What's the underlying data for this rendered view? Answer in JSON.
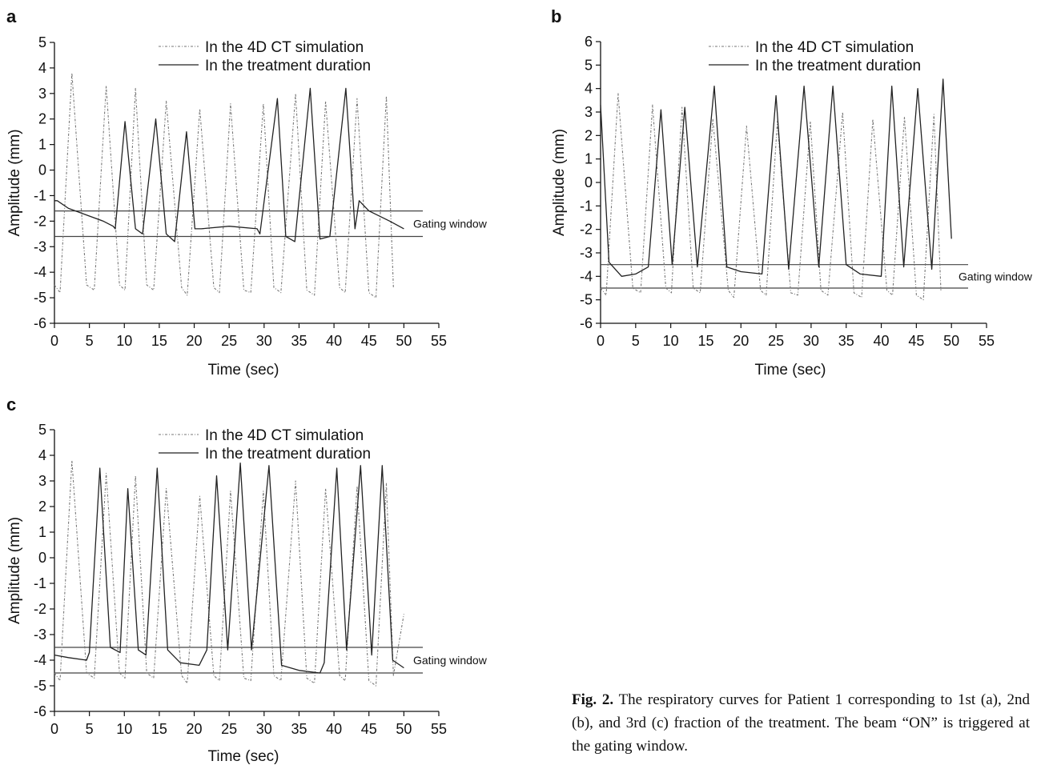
{
  "caption": {
    "label": "Fig. 2.",
    "text": "The respiratory curves for Patient 1 corresponding to 1st (a), 2nd (b), and 3rd (c) fraction of the treatment. The beam “ON” is triggered at the gating window."
  },
  "chart_data": [
    {
      "panel": "a",
      "type": "line",
      "xlabel": "Time (sec)",
      "ylabel": "Amplitude (mm)",
      "xlim": [
        0,
        55
      ],
      "ylim": [
        -6,
        5
      ],
      "xticks": [
        0,
        5,
        10,
        15,
        20,
        25,
        30,
        35,
        40,
        45,
        50,
        55
      ],
      "yticks": [
        -6,
        -5,
        -4,
        -3,
        -2,
        -1,
        0,
        1,
        2,
        3,
        4,
        5
      ],
      "legend_position": "top-right",
      "gating_window": {
        "label": "Gating window",
        "lower": -2.6,
        "upper": -1.6
      },
      "series": [
        {
          "name": "In the 4D CT simulation",
          "style": "dash-dot",
          "x": [
            0,
            0.8,
            2.5,
            4.6,
            5.7,
            7.4,
            9.3,
            10.1,
            11.6,
            13.2,
            14.2,
            16.0,
            18.2,
            19.0,
            20.8,
            22.8,
            23.6,
            25.2,
            27.1,
            28.1,
            29.9,
            31.4,
            32.4,
            34.5,
            36.1,
            37.2,
            38.8,
            40.8,
            41.6,
            43.3,
            45.0,
            46.0,
            47.5,
            48.5
          ],
          "values": [
            -4.5,
            -4.8,
            3.8,
            -4.5,
            -4.7,
            3.3,
            -4.5,
            -4.7,
            3.2,
            -4.5,
            -4.7,
            2.7,
            -4.6,
            -4.9,
            2.4,
            -4.6,
            -4.8,
            2.6,
            -4.7,
            -4.8,
            2.6,
            -4.6,
            -4.8,
            3.0,
            -4.7,
            -4.9,
            2.7,
            -4.6,
            -4.8,
            2.8,
            -4.8,
            -5.0,
            2.9,
            -4.6
          ]
        },
        {
          "name": "In the treatment duration",
          "style": "solid",
          "x": [
            0,
            0.4,
            2,
            5,
            7,
            8.4,
            8.7,
            10.1,
            11.6,
            12.6,
            14.5,
            16.0,
            17.2,
            18.9,
            20.1,
            21.0,
            25,
            29,
            29.4,
            31.9,
            33.1,
            34.4,
            36.6,
            38.0,
            39.4,
            41.7,
            43.0,
            43.6,
            45,
            48,
            50
          ],
          "values": [
            -1.2,
            -1.2,
            -1.5,
            -1.8,
            -2.0,
            -2.2,
            -2.3,
            1.9,
            -2.3,
            -2.5,
            2.0,
            -2.5,
            -2.8,
            1.5,
            -2.3,
            -2.3,
            -2.2,
            -2.3,
            -2.5,
            2.8,
            -2.6,
            -2.8,
            3.2,
            -2.7,
            -2.6,
            3.2,
            -2.3,
            -1.2,
            -1.6,
            -2.0,
            -2.3
          ]
        }
      ]
    },
    {
      "panel": "b",
      "type": "line",
      "xlabel": "Time (sec)",
      "ylabel": "Amplitude (mm)",
      "xlim": [
        0,
        55
      ],
      "ylim": [
        -6,
        6
      ],
      "xticks": [
        0,
        5,
        10,
        15,
        20,
        25,
        30,
        35,
        40,
        45,
        50,
        55
      ],
      "yticks": [
        -6,
        -5,
        -4,
        -3,
        -2,
        -1,
        0,
        1,
        2,
        3,
        4,
        5,
        6
      ],
      "legend_position": "top-right",
      "gating_window": {
        "label": "Gating window",
        "lower": -4.5,
        "upper": -3.5
      },
      "series": [
        {
          "name": "In the 4D CT simulation",
          "style": "dash-dot",
          "x": [
            0,
            0.8,
            2.5,
            4.6,
            5.7,
            7.4,
            9.3,
            10.1,
            11.6,
            13.2,
            14.2,
            16.0,
            18.2,
            19.0,
            20.8,
            22.8,
            23.6,
            25.2,
            27.1,
            28.1,
            29.9,
            31.4,
            32.4,
            34.5,
            36.1,
            37.2,
            38.8,
            40.8,
            41.6,
            43.3,
            45.0,
            46.0,
            47.5,
            48.5
          ],
          "values": [
            -4.5,
            -4.8,
            3.8,
            -4.5,
            -4.7,
            3.3,
            -4.5,
            -4.7,
            3.2,
            -4.5,
            -4.7,
            2.7,
            -4.6,
            -4.9,
            2.4,
            -4.6,
            -4.8,
            2.6,
            -4.7,
            -4.8,
            2.6,
            -4.6,
            -4.8,
            3.0,
            -4.7,
            -4.9,
            2.7,
            -4.6,
            -4.8,
            2.8,
            -4.8,
            -5.0,
            2.9,
            -4.6
          ]
        },
        {
          "name": "In the treatment duration",
          "style": "solid",
          "x": [
            0,
            1.2,
            3,
            5,
            6.8,
            8.6,
            10.2,
            12.0,
            13.8,
            16.2,
            18.0,
            20,
            23,
            25.0,
            26.8,
            29.0,
            31.1,
            33.1,
            35.0,
            37,
            40,
            41.5,
            43.2,
            45.2,
            47.2,
            48.8,
            50
          ],
          "values": [
            3.3,
            -3.4,
            -4.0,
            -3.9,
            -3.6,
            3.1,
            -3.5,
            3.2,
            -3.6,
            4.1,
            -3.6,
            -3.8,
            -3.9,
            3.7,
            -3.7,
            4.1,
            -3.6,
            4.1,
            -3.5,
            -3.9,
            -4.0,
            4.1,
            -3.6,
            4.0,
            -3.7,
            4.4,
            -2.4
          ]
        }
      ]
    },
    {
      "panel": "c",
      "type": "line",
      "xlabel": "Time (sec)",
      "ylabel": "Amplitude (mm)",
      "xlim": [
        0,
        55
      ],
      "ylim": [
        -6,
        5
      ],
      "xticks": [
        0,
        5,
        10,
        15,
        20,
        25,
        30,
        35,
        40,
        45,
        50,
        55
      ],
      "yticks": [
        -6,
        -5,
        -4,
        -3,
        -2,
        -1,
        0,
        1,
        2,
        3,
        4,
        5
      ],
      "legend_position": "top-right",
      "gating_window": {
        "label": "Gating window",
        "lower": -4.5,
        "upper": -3.5
      },
      "series": [
        {
          "name": "In the 4D CT simulation",
          "style": "dash-dot",
          "x": [
            0,
            0.8,
            2.5,
            4.6,
            5.7,
            7.4,
            9.3,
            10.1,
            11.6,
            13.2,
            14.2,
            16.0,
            18.2,
            19.0,
            20.8,
            22.8,
            23.6,
            25.2,
            27.1,
            28.1,
            29.9,
            31.4,
            32.4,
            34.5,
            36.1,
            37.2,
            38.8,
            40.8,
            41.6,
            43.3,
            45.0,
            46.0,
            47.5,
            48.5,
            50.0
          ],
          "values": [
            -4.5,
            -4.8,
            3.8,
            -4.5,
            -4.7,
            3.3,
            -4.5,
            -4.7,
            3.2,
            -4.5,
            -4.7,
            2.7,
            -4.6,
            -4.9,
            2.4,
            -4.6,
            -4.8,
            2.6,
            -4.7,
            -4.8,
            2.6,
            -4.6,
            -4.8,
            3.0,
            -4.7,
            -4.9,
            2.7,
            -4.6,
            -4.8,
            2.8,
            -4.8,
            -5.0,
            2.9,
            -4.6,
            -2.2
          ]
        },
        {
          "name": "In the treatment duration",
          "style": "solid",
          "x": [
            0,
            2,
            4.6,
            5.0,
            6.5,
            8.0,
            9.4,
            10.5,
            12.0,
            13.1,
            14.7,
            16.2,
            18,
            20.7,
            21.8,
            23.2,
            24.8,
            26.6,
            28.2,
            30.7,
            32.5,
            35,
            38,
            38.6,
            40.4,
            41.8,
            43.8,
            45.4,
            46.9,
            48.4,
            50
          ],
          "values": [
            -3.8,
            -3.9,
            -4.0,
            -3.7,
            3.5,
            -3.5,
            -3.7,
            2.7,
            -3.6,
            -3.8,
            3.5,
            -3.6,
            -4.1,
            -4.2,
            -3.6,
            3.2,
            -3.6,
            3.7,
            -3.6,
            3.6,
            -4.2,
            -4.4,
            -4.5,
            -4.1,
            3.5,
            -3.6,
            3.6,
            -3.8,
            3.6,
            -4.0,
            -4.3
          ]
        }
      ]
    }
  ]
}
